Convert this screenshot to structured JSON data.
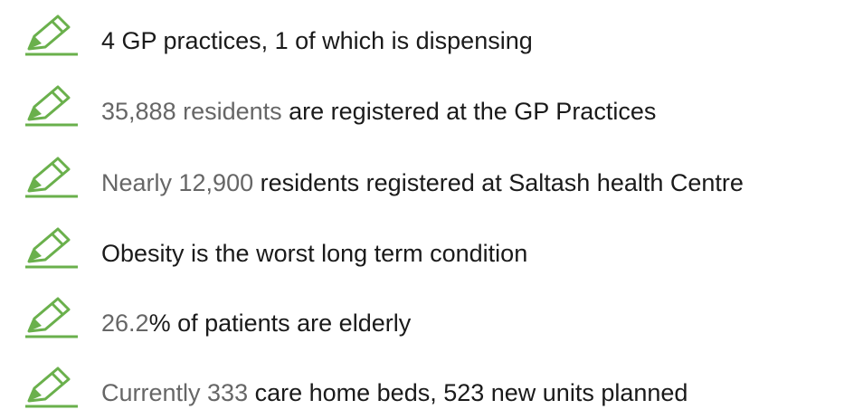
{
  "items": [
    {
      "parts": [
        {
          "text": "4 GP practices, 1 of which is dispensing",
          "color": "#1a1a1a"
        }
      ]
    },
    {
      "parts": [
        {
          "text": "35,888 residents",
          "color": "#666666"
        },
        {
          "text": " are registered at the GP Practices",
          "color": "#1a1a1a"
        }
      ]
    },
    {
      "parts": [
        {
          "text": "Nearly 12,900",
          "color": "#666666"
        },
        {
          "text": " residents registered at Saltash health Centre",
          "color": "#1a1a1a"
        }
      ]
    },
    {
      "parts": [
        {
          "text": "Obesity is the worst long term condition",
          "color": "#1a1a1a"
        }
      ]
    },
    {
      "parts": [
        {
          "text": "26.2",
          "color": "#666666"
        },
        {
          "text": "% of patients are elderly",
          "color": "#1a1a1a"
        }
      ]
    },
    {
      "parts": [
        {
          "text": "Currently 333",
          "color": "#666666"
        },
        {
          "text": " care home beds, 523 new units planned",
          "color": "#1a1a1a"
        }
      ]
    }
  ]
}
